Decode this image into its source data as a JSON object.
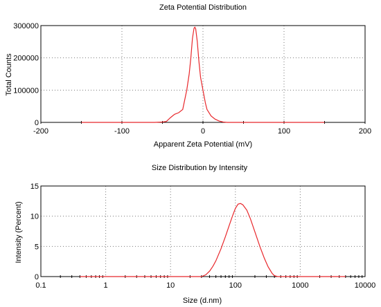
{
  "chart_data": [
    {
      "type": "line",
      "title": "Zeta Potential Distribution",
      "xlabel": "Apparent Zeta Potential (mV)",
      "ylabel": "Total Counts",
      "xscale": "linear",
      "xlim": [
        -200,
        200
      ],
      "ylim": [
        0,
        300000
      ],
      "xticks": [
        -200,
        -100,
        0,
        100,
        200
      ],
      "xtick_labels": [
        "-200",
        "-100",
        "0",
        "100",
        "200"
      ],
      "yticks": [
        0,
        100000,
        200000,
        300000
      ],
      "ytick_labels": [
        "0",
        "100000",
        "200000",
        "300000"
      ],
      "grid": true,
      "legend": false,
      "series_color": "#e8262a",
      "series": [
        {
          "x": [
            -150,
            -60,
            -50,
            -45,
            -40,
            -35,
            -30,
            -25,
            -20,
            -17,
            -15,
            -13,
            -11,
            -10,
            -9,
            -7,
            -5,
            -3,
            0,
            3,
            5,
            10,
            15,
            20,
            25,
            30,
            60,
            150
          ],
          "y": [
            0,
            0,
            1000,
            3000,
            15000,
            25000,
            30000,
            40000,
            100000,
            150000,
            200000,
            260000,
            292000,
            295000,
            290000,
            250000,
            190000,
            140000,
            100000,
            60000,
            40000,
            20000,
            10000,
            4000,
            1000,
            0,
            0,
            0
          ]
        }
      ]
    },
    {
      "type": "line",
      "title": "Size Distribution by Intensity",
      "xlabel": "Size (d.nm)",
      "ylabel": "Intensity (Percent)",
      "xscale": "log",
      "xlim": [
        0.1,
        10000
      ],
      "ylim": [
        0,
        15
      ],
      "xticks": [
        0.1,
        1,
        10,
        100,
        1000,
        10000
      ],
      "xtick_labels": [
        "0.1",
        "1",
        "10",
        "100",
        "1000",
        "10000"
      ],
      "yticks": [
        0,
        5,
        10,
        15
      ],
      "ytick_labels": [
        "0",
        "5",
        "10",
        "15"
      ],
      "grid": true,
      "legend": false,
      "series_color": "#e8262a",
      "series": [
        {
          "x": [
            0.4,
            30,
            35,
            40,
            45,
            50,
            60,
            70,
            80,
            90,
            100,
            110,
            120,
            130,
            150,
            170,
            200,
            240,
            280,
            320,
            370,
            400,
            450,
            1000,
            5000
          ],
          "y": [
            0,
            0,
            0.3,
            0.9,
            1.7,
            2.6,
            4.6,
            6.6,
            8.4,
            10.0,
            11.3,
            12.0,
            12.1,
            11.9,
            11.0,
            9.6,
            7.4,
            4.9,
            3.0,
            1.6,
            0.5,
            0.15,
            0,
            0,
            0
          ]
        }
      ]
    }
  ]
}
